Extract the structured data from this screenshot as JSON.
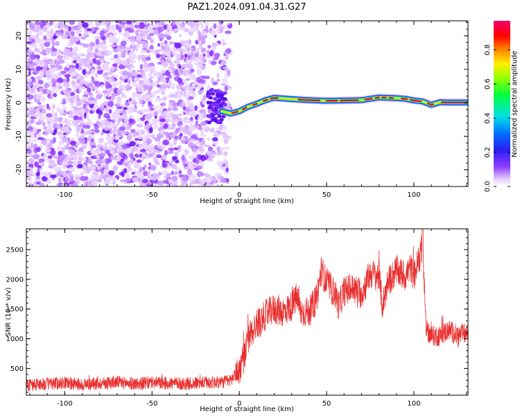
{
  "title": "PAZ1.2024.091.04.31.G27",
  "chart_data": [
    {
      "type": "heatmap",
      "xlabel": "Height of straight line (km)",
      "ylabel": "Frequency (Hz)",
      "xlim": [
        -122,
        131
      ],
      "ylim": [
        -25,
        24.5
      ],
      "xticks": [
        -100,
        -50,
        0,
        50,
        100
      ],
      "yticks": [
        -20,
        -10,
        0,
        10,
        20
      ],
      "grid": false,
      "colorbar": {
        "label": "Normalized spectral amplitude",
        "range": [
          0,
          0.97
        ],
        "ticks": [
          0.0,
          0.2,
          0.4,
          0.6,
          0.8
        ],
        "colormap": "rainbow (white-violet-blue-cyan-green-yellow-red-magenta)"
      },
      "features": [
        {
          "region": "x < -10",
          "description": "diffuse noise across all frequencies, amplitude ~0.05-0.25"
        },
        {
          "region": "x > -10",
          "description": "narrow strong ridge near 0 Hz, amplitude ~0.7-0.95"
        }
      ],
      "ridge": {
        "x": [
          -10,
          -5,
          0,
          5,
          10,
          15,
          20,
          30,
          40,
          50,
          60,
          70,
          80,
          90,
          95,
          100,
          105,
          110,
          115,
          120,
          131
        ],
        "y": [
          -2.5,
          -3.2,
          -2.5,
          -1.2,
          -0.3,
          0.8,
          1.5,
          1.1,
          0.8,
          0.6,
          0.7,
          0.8,
          1.6,
          1.4,
          1.2,
          0.7,
          0.4,
          -0.6,
          0.2,
          0.1,
          0.1
        ]
      }
    },
    {
      "type": "line",
      "xlabel": "Height of straight line (km)",
      "ylabel": "SNR (10 * v/v)",
      "xlim": [
        -122,
        131
      ],
      "ylim": [
        50,
        2850
      ],
      "xticks": [
        -100,
        -50,
        0,
        50,
        100
      ],
      "yticks": [
        500,
        1000,
        1500,
        2000,
        2500
      ],
      "grid": false,
      "color": "#e83030",
      "series": [
        {
          "name": "",
          "x": [
            -122,
            -110,
            -100,
            -90,
            -80,
            -70,
            -60,
            -50,
            -40,
            -30,
            -20,
            -10,
            -5,
            0,
            3,
            5,
            10,
            15,
            20,
            25,
            30,
            33,
            35,
            40,
            44,
            47,
            50,
            55,
            57,
            60,
            65,
            70,
            75,
            80,
            82,
            85,
            90,
            95,
            98,
            100,
            103,
            105,
            107,
            110,
            115,
            120,
            125,
            131
          ],
          "y": [
            220,
            240,
            260,
            230,
            250,
            270,
            240,
            260,
            250,
            240,
            260,
            270,
            300,
            480,
            700,
            1000,
            1250,
            1400,
            1500,
            1450,
            1550,
            1700,
            1450,
            1450,
            1650,
            2150,
            1950,
            1750,
            1550,
            1800,
            1850,
            1750,
            2100,
            2050,
            1550,
            1950,
            2150,
            2050,
            2200,
            2050,
            2350,
            2550,
            1150,
            1050,
            1050,
            1150,
            1050,
            1100
          ]
        }
      ]
    }
  ]
}
